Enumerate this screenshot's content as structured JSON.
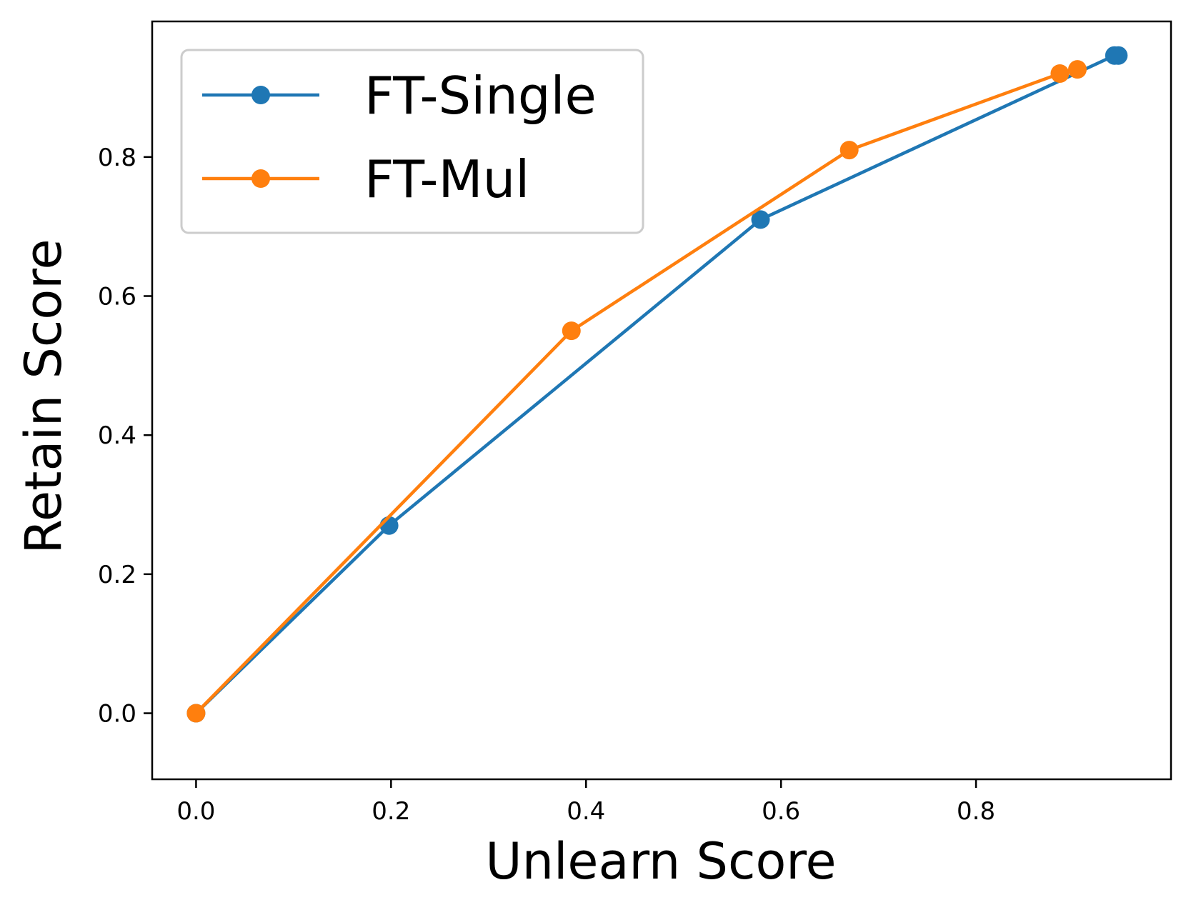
{
  "chart_data": {
    "type": "line",
    "xlabel": "Unlearn Score",
    "ylabel": "Retain Score",
    "xlim": [
      -0.045,
      1.0
    ],
    "ylim": [
      -0.095,
      0.995
    ],
    "xticks": [
      0.0,
      0.2,
      0.4,
      0.6,
      0.8
    ],
    "yticks": [
      0.0,
      0.2,
      0.4,
      0.6,
      0.8
    ],
    "tick_labels_x": [
      "0.0",
      "0.2",
      "0.4",
      "0.6",
      "0.8"
    ],
    "tick_labels_y": [
      "0.0",
      "0.2",
      "0.4",
      "0.6",
      "0.8"
    ],
    "grid": false,
    "legend_position": "top-left",
    "series": [
      {
        "name": "FT-Single",
        "color": "#1f77b4",
        "marker": "circle",
        "x": [
          0.0,
          0.198,
          0.579,
          0.942,
          0.946
        ],
        "y": [
          0.0,
          0.27,
          0.71,
          0.946,
          0.946
        ]
      },
      {
        "name": "FT-Mul",
        "color": "#ff7f0e",
        "marker": "circle",
        "x": [
          0.0,
          0.385,
          0.67,
          0.886,
          0.904
        ],
        "y": [
          0.0,
          0.55,
          0.81,
          0.92,
          0.926
        ]
      }
    ]
  }
}
